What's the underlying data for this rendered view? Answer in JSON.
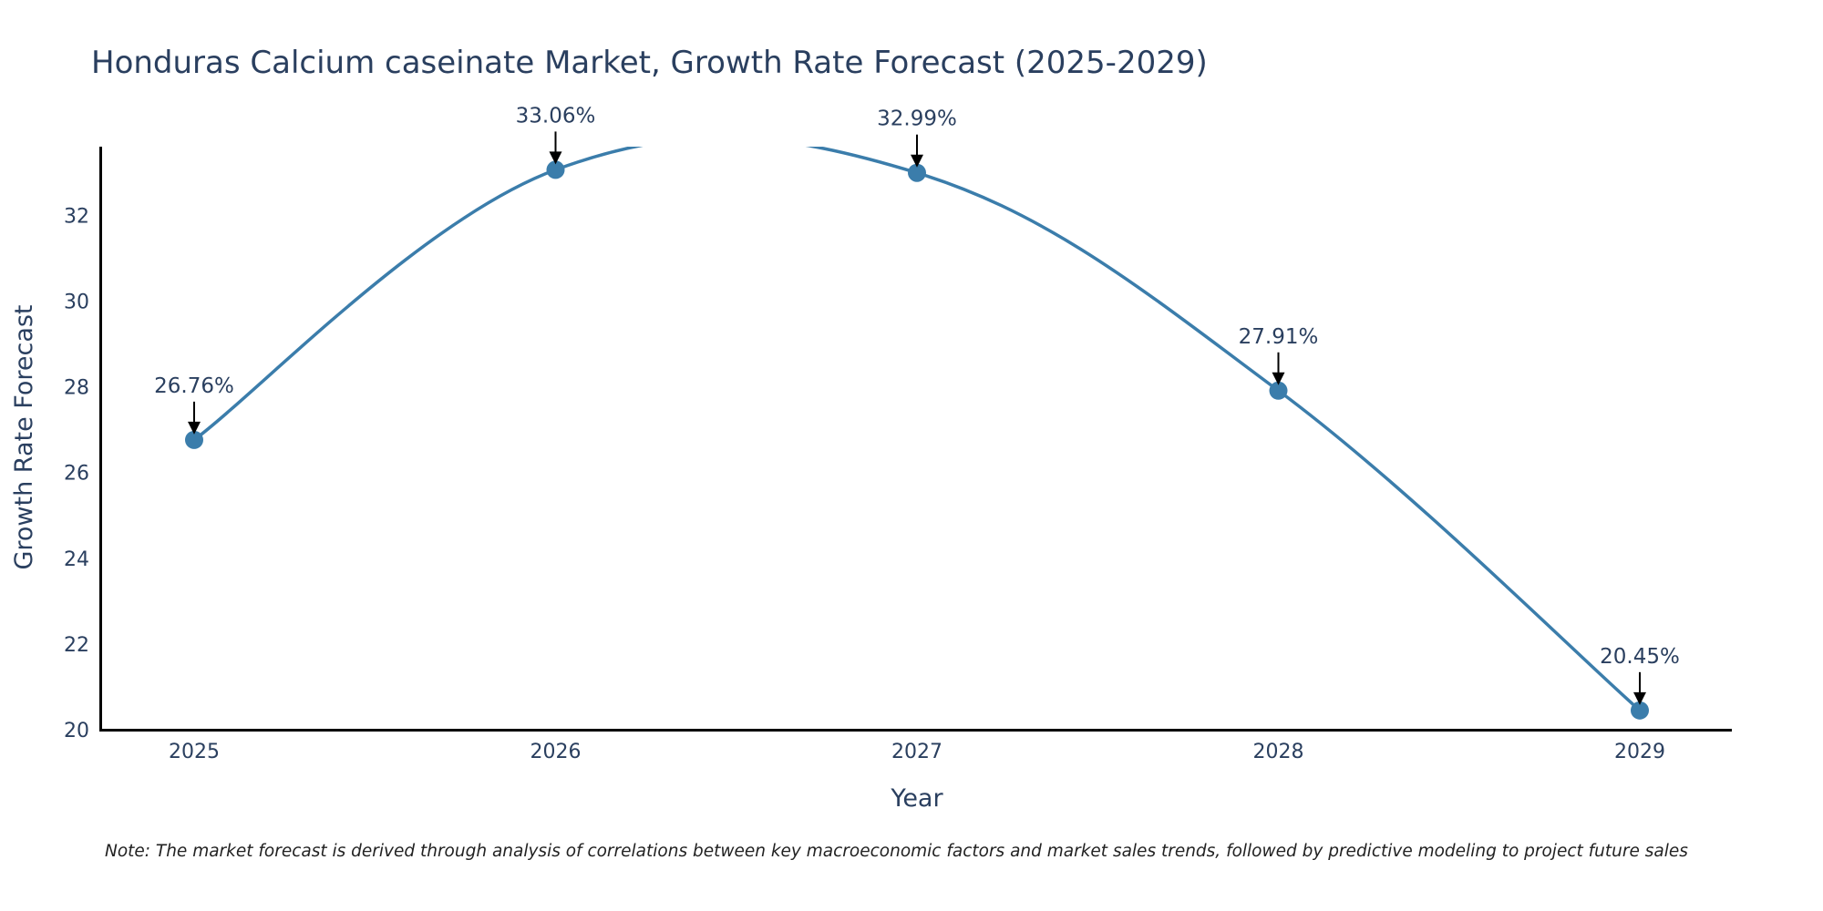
{
  "chart_data": {
    "type": "line",
    "title": "Honduras Calcium caseinate Market, Growth Rate Forecast (2025-2029)",
    "xlabel": "Year",
    "ylabel": "Growth Rate Forecast",
    "categories": [
      "2025",
      "2026",
      "2027",
      "2028",
      "2029"
    ],
    "series": [
      {
        "values": [
          26.76,
          33.06,
          32.99,
          27.91,
          20.45
        ]
      }
    ],
    "annotations": [
      "26.76%",
      "33.06%",
      "32.99%",
      "27.91%",
      "20.45%"
    ],
    "y_ticks": [
      20,
      22,
      24,
      26,
      28,
      30,
      32
    ],
    "ylim": [
      20,
      33.6
    ],
    "grid": false,
    "smoothed": true,
    "line_color": "#3b7dab",
    "note": "Note: The market forecast is derived through analysis of correlations between key macroeconomic factors and market sales trends, followed by predictive modeling to project future sales"
  }
}
